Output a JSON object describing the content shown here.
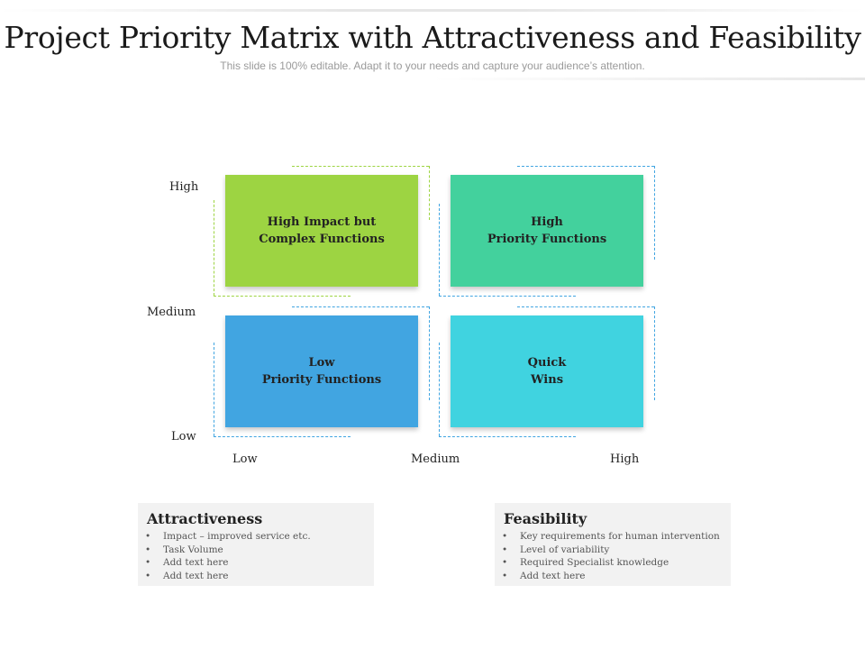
{
  "title": "Project Priority Matrix with Attractiveness and Feasibility",
  "subtitle": "This slide is 100% editable. Adapt it to your needs and capture your audience’s attention.",
  "y_axis_ticks": [
    "High",
    "Medium",
    "Low"
  ],
  "x_axis_ticks": [
    "Low",
    "Medium",
    "High"
  ],
  "quadrants": [
    {
      "lines": [
        "High Impact but",
        "Complex Functions"
      ],
      "color": "#9dd442"
    },
    {
      "lines": [
        "High",
        "Priority Functions"
      ],
      "color": "#43d19d"
    },
    {
      "lines": [
        "Low",
        "Priority Functions"
      ],
      "color": "#41a5e1"
    },
    {
      "lines": [
        "Quick",
        "Wins"
      ],
      "color": "#40d3e0"
    }
  ],
  "dash_colors": {
    "green": "#9dd442",
    "blue": "#41a5e1"
  },
  "attractiveness": {
    "title": "Attractiveness",
    "items": [
      "Impact – improved service etc.",
      "Task Volume",
      "Add text here",
      "Add text here"
    ]
  },
  "feasibility": {
    "title": "Feasibility",
    "items": [
      "Key requirements for human intervention",
      "Level of variability",
      "Required Specialist knowledge",
      "Add text here"
    ]
  }
}
